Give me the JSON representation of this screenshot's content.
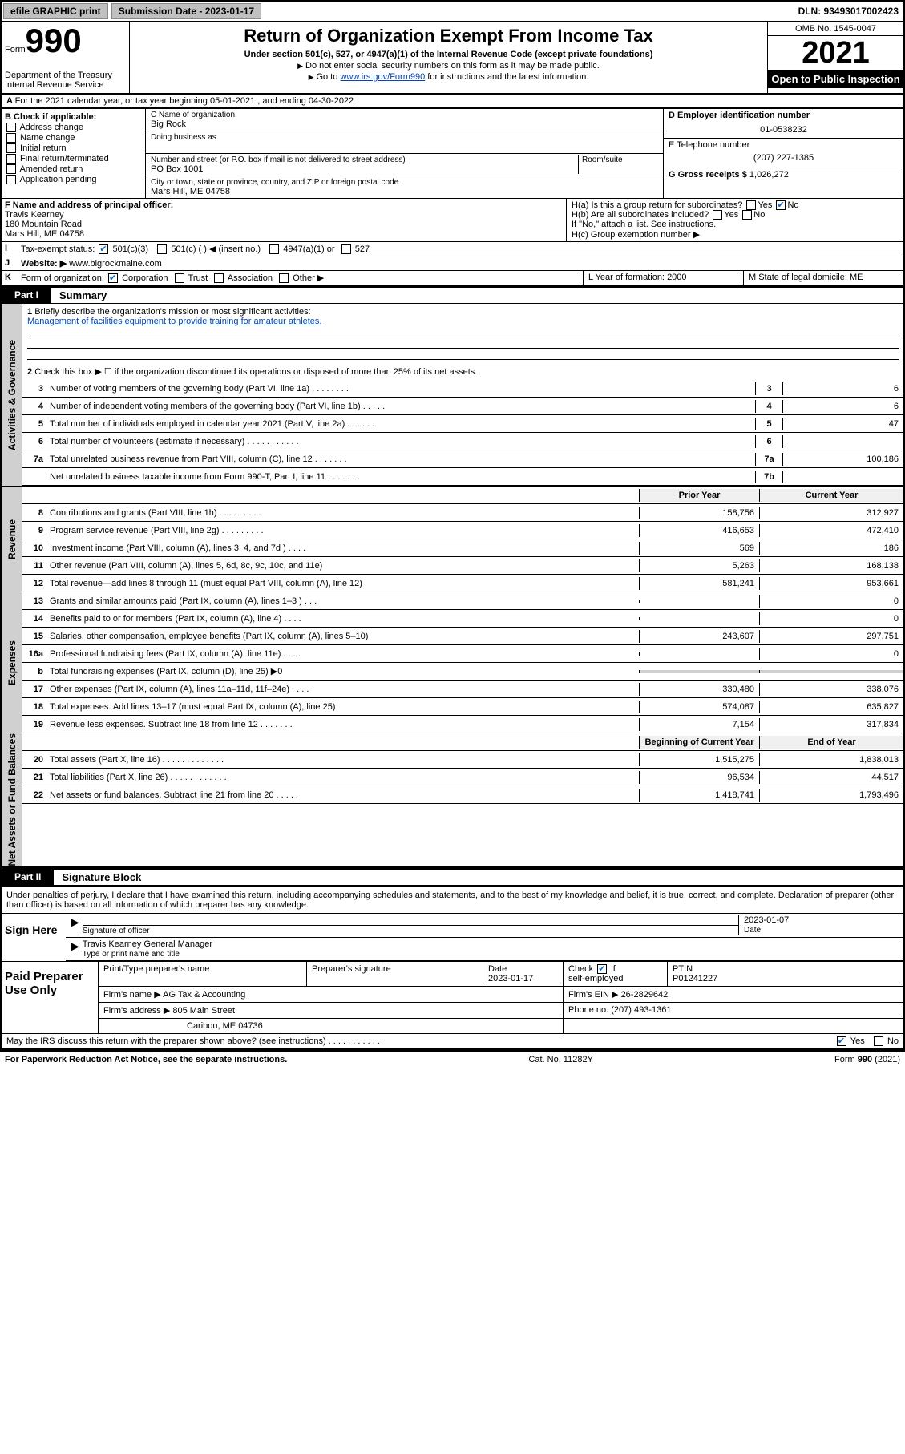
{
  "top": {
    "efile": "efile GRAPHIC print",
    "submission_label": "Submission Date - 2023-01-17",
    "dln": "DLN: 93493017002423"
  },
  "header": {
    "form_prefix": "Form",
    "form_no": "990",
    "title": "Return of Organization Exempt From Income Tax",
    "sub": "Under section 501(c), 527, or 4947(a)(1) of the Internal Revenue Code (except private foundations)",
    "note1": "Do not enter social security numbers on this form as it may be made public.",
    "goto_pre": "Go to ",
    "goto_link": "www.irs.gov/Form990",
    "goto_post": " for instructions and the latest information.",
    "dept": "Department of the Treasury\nInternal Revenue Service",
    "omb": "OMB No. 1545-0047",
    "year": "2021",
    "inspection": "Open to Public Inspection"
  },
  "row_a": "For the 2021 calendar year, or tax year beginning 05-01-2021   , and ending 04-30-2022",
  "section_b": {
    "label": "B Check if applicable:",
    "opts": [
      "Address change",
      "Name change",
      "Initial return",
      "Final return/terminated",
      "Amended return",
      "Application pending"
    ]
  },
  "section_c": {
    "name_lbl": "C Name of organization",
    "name": "Big Rock",
    "dba_lbl": "Doing business as",
    "addr_lbl": "Number and street (or P.O. box if mail is not delivered to street address)",
    "room_lbl": "Room/suite",
    "addr": "PO Box 1001",
    "city_lbl": "City or town, state or province, country, and ZIP or foreign postal code",
    "city": "Mars Hill, ME  04758"
  },
  "section_d": {
    "lbl": "D Employer identification number",
    "val": "01-0538232"
  },
  "section_e": {
    "lbl": "E Telephone number",
    "val": "(207) 227-1385"
  },
  "section_g": {
    "lbl": "G Gross receipts $",
    "val": "1,026,272"
  },
  "section_f": {
    "lbl": "F Name and address of principal officer:",
    "name": "Travis Kearney",
    "addr1": "180 Mountain Road",
    "addr2": "Mars Hill, ME  04758"
  },
  "section_h": {
    "ha": "H(a)  Is this a group return for subordinates?",
    "hb": "H(b)  Are all subordinates included?",
    "hb_note": "If \"No,\" attach a list. See instructions.",
    "hc": "H(c)  Group exemption number ▶"
  },
  "row_i": "Tax-exempt status:",
  "row_i_opts": {
    "a": "501(c)(3)",
    "b": "501(c) (   ) ◀ (insert no.)",
    "c": "4947(a)(1) or",
    "d": "527"
  },
  "row_j": {
    "lbl": "Website: ▶",
    "val": "www.bigrockmaine.com"
  },
  "row_k": "Form of organization:",
  "row_k_opts": [
    "Corporation",
    "Trust",
    "Association",
    "Other ▶"
  ],
  "row_l": {
    "lbl": "L Year of formation:",
    "val": "2000"
  },
  "row_m": {
    "lbl": "M State of legal domicile:",
    "val": "ME"
  },
  "part1": {
    "tab": "Part I",
    "title": "Summary",
    "q1_lbl": "Briefly describe the organization's mission or most significant activities:",
    "q1": "Management of facilities equipment to provide training for amateur athletes.",
    "q2": "Check this box ▶ ☐  if the organization discontinued its operations or disposed of more than 25% of its net assets.",
    "lines_gov": [
      {
        "n": "3",
        "d": "Number of voting members of the governing body (Part VI, line 1a)   .    .    .    .    .    .    .    .",
        "k": "3",
        "v": "6"
      },
      {
        "n": "4",
        "d": "Number of independent voting members of the governing body (Part VI, line 1b)  .    .    .    .    .",
        "k": "4",
        "v": "6"
      },
      {
        "n": "5",
        "d": "Total number of individuals employed in calendar year 2021 (Part V, line 2a)  .    .    .    .    .    .",
        "k": "5",
        "v": "47"
      },
      {
        "n": "6",
        "d": "Total number of volunteers (estimate if necessary)   .    .    .    .    .    .    .    .    .    .    .",
        "k": "6",
        "v": ""
      },
      {
        "n": "7a",
        "d": "Total unrelated business revenue from Part VIII, column (C), line 12   .    .    .    .    .    .    .",
        "k": "7a",
        "v": "100,186"
      },
      {
        "n": "",
        "d": "Net unrelated business taxable income from Form 990-T, Part I, line 11  .    .    .    .    .    .    .",
        "k": "7b",
        "v": ""
      }
    ],
    "col_hdr": {
      "py": "Prior Year",
      "cy": "Current Year"
    },
    "lines_rev": [
      {
        "n": "8",
        "d": "Contributions and grants (Part VIII, line 1h)   .    .    .    .    .    .    .    .    .",
        "py": "158,756",
        "cy": "312,927"
      },
      {
        "n": "9",
        "d": "Program service revenue (Part VIII, line 2g)   .    .    .    .    .    .    .    .    .",
        "py": "416,653",
        "cy": "472,410"
      },
      {
        "n": "10",
        "d": "Investment income (Part VIII, column (A), lines 3, 4, and 7d )    .    .    .    .",
        "py": "569",
        "cy": "186"
      },
      {
        "n": "11",
        "d": "Other revenue (Part VIII, column (A), lines 5, 6d, 8c, 9c, 10c, and 11e)",
        "py": "5,263",
        "cy": "168,138"
      },
      {
        "n": "12",
        "d": "Total revenue—add lines 8 through 11 (must equal Part VIII, column (A), line 12)",
        "py": "581,241",
        "cy": "953,661"
      }
    ],
    "lines_exp": [
      {
        "n": "13",
        "d": "Grants and similar amounts paid (Part IX, column (A), lines 1–3 )   .    .    .",
        "py": "",
        "cy": "0"
      },
      {
        "n": "14",
        "d": "Benefits paid to or for members (Part IX, column (A), line 4)   .    .    .    .",
        "py": "",
        "cy": "0"
      },
      {
        "n": "15",
        "d": "Salaries, other compensation, employee benefits (Part IX, column (A), lines 5–10)",
        "py": "243,607",
        "cy": "297,751"
      },
      {
        "n": "16a",
        "d": "Professional fundraising fees (Part IX, column (A), line 11e)   .    .    .    .",
        "py": "",
        "cy": "0"
      },
      {
        "n": "b",
        "d": "Total fundraising expenses (Part IX, column (D), line 25) ▶0",
        "py": "",
        "cy": ""
      },
      {
        "n": "17",
        "d": "Other expenses (Part IX, column (A), lines 11a–11d, 11f–24e)  .    .    .    .",
        "py": "330,480",
        "cy": "338,076"
      },
      {
        "n": "18",
        "d": "Total expenses. Add lines 13–17 (must equal Part IX, column (A), line 25)",
        "py": "574,087",
        "cy": "635,827"
      },
      {
        "n": "19",
        "d": "Revenue less expenses. Subtract line 18 from line 12  .    .    .    .    .    .    .",
        "py": "7,154",
        "cy": "317,834"
      }
    ],
    "col_hdr2": {
      "py": "Beginning of Current Year",
      "cy": "End of Year"
    },
    "lines_net": [
      {
        "n": "20",
        "d": "Total assets (Part X, line 16)  .    .    .    .    .    .    .    .    .    .    .    .    .",
        "py": "1,515,275",
        "cy": "1,838,013"
      },
      {
        "n": "21",
        "d": "Total liabilities (Part X, line 26)   .    .    .    .    .    .    .    .    .    .    .    .",
        "py": "96,534",
        "cy": "44,517"
      },
      {
        "n": "22",
        "d": "Net assets or fund balances. Subtract line 21 from line 20   .    .    .    .    .",
        "py": "1,418,741",
        "cy": "1,793,496"
      }
    ]
  },
  "vert_labels": {
    "gov": "Activities & Governance",
    "rev": "Revenue",
    "exp": "Expenses",
    "net": "Net Assets or Fund Balances"
  },
  "part2": {
    "tab": "Part II",
    "title": "Signature Block",
    "decl": "Under penalties of perjury, I declare that I have examined this return, including accompanying schedules and statements, and to the best of my knowledge and belief, it is true, correct, and complete. Declaration of preparer (other than officer) is based on all information of which preparer has any knowledge.",
    "sign_here": "Sign Here",
    "sig_officer": "Signature of officer",
    "sig_date": "2023-01-07",
    "date_lbl": "Date",
    "officer_name": "Travis Kearney  General Manager",
    "officer_lbl": "Type or print name and title",
    "paid": "Paid Preparer Use Only",
    "prep_hdr": {
      "a": "Print/Type preparer's name",
      "b": "Preparer's signature",
      "c": "Date",
      "d": "Check ☑ if self-employed",
      "e": "PTIN"
    },
    "prep_row1": {
      "c": "2023-01-17",
      "e": "P01241227"
    },
    "firm_name_lbl": "Firm's name    ▶",
    "firm_name": "AG Tax & Accounting",
    "firm_ein_lbl": "Firm's EIN ▶",
    "firm_ein": "26-2829642",
    "firm_addr_lbl": "Firm's address ▶",
    "firm_addr1": "805 Main Street",
    "firm_addr2": "Caribou, ME  04736",
    "phone_lbl": "Phone no.",
    "phone": "(207) 493-1361",
    "discuss": "May the IRS discuss this return with the preparer shown above? (see instructions)   .    .    .    .    .    .    .    .    .    .    .",
    "yes": "Yes",
    "no": "No"
  },
  "footer": {
    "left": "For Paperwork Reduction Act Notice, see the separate instructions.",
    "mid": "Cat. No. 11282Y",
    "right_pre": "Form ",
    "right_b": "990",
    "right_post": " (2021)"
  }
}
